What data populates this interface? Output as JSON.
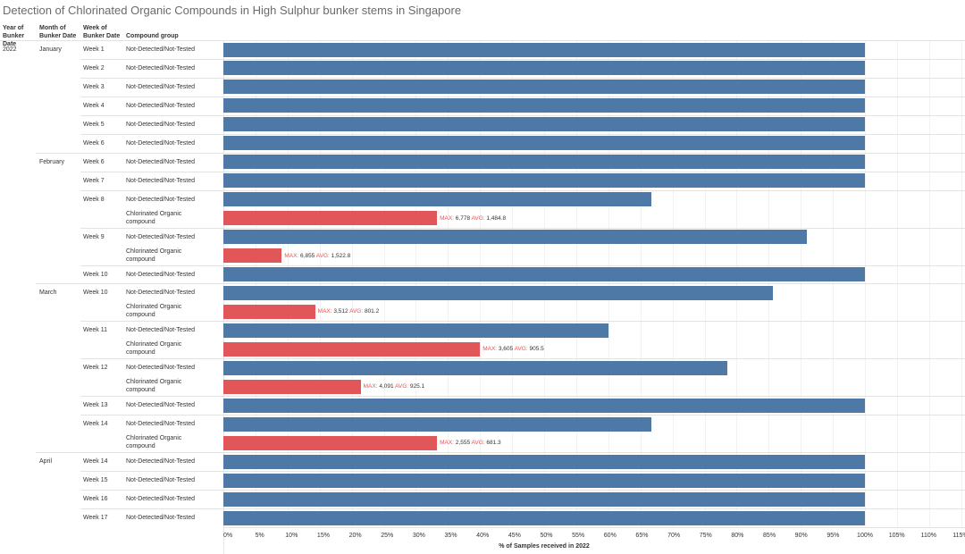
{
  "title": "Detection of Chlorinated Organic Compounds in High Sulphur bunker stems in Singapore",
  "headers": {
    "year": "Year of Bunker Date",
    "month": "Month of Bunker Date",
    "week": "Week of Bunker Date",
    "group": "Compound group"
  },
  "colors": {
    "Not-Detected/Not-Tested": "#4e79a7",
    "Chlorinated Organic compound": "#e15759"
  },
  "chart_data": {
    "type": "bar",
    "orientation": "horizontal",
    "xlabel": "% of Samples received in 2022",
    "xlim": [
      0,
      115
    ],
    "xticks": [
      "0%",
      "5%",
      "10%",
      "15%",
      "20%",
      "25%",
      "30%",
      "35%",
      "40%",
      "45%",
      "50%",
      "55%",
      "60%",
      "65%",
      "70%",
      "75%",
      "80%",
      "85%",
      "90%",
      "95%",
      "100%",
      "105%",
      "110%",
      "115%"
    ],
    "grid": true,
    "label_max": "MAX:",
    "label_avg": "AVG:",
    "year": "2022",
    "months": [
      {
        "name": "January",
        "weeks": [
          {
            "week": "Week 1",
            "rows": [
              {
                "group": "Not-Detected/Not-Tested",
                "pct": 100
              }
            ]
          },
          {
            "week": "Week 2",
            "rows": [
              {
                "group": "Not-Detected/Not-Tested",
                "pct": 100
              }
            ]
          },
          {
            "week": "Week 3",
            "rows": [
              {
                "group": "Not-Detected/Not-Tested",
                "pct": 100
              }
            ]
          },
          {
            "week": "Week 4",
            "rows": [
              {
                "group": "Not-Detected/Not-Tested",
                "pct": 100
              }
            ]
          },
          {
            "week": "Week 5",
            "rows": [
              {
                "group": "Not-Detected/Not-Tested",
                "pct": 100
              }
            ]
          },
          {
            "week": "Week 6",
            "rows": [
              {
                "group": "Not-Detected/Not-Tested",
                "pct": 100
              }
            ]
          }
        ]
      },
      {
        "name": "February",
        "weeks": [
          {
            "week": "Week 6",
            "rows": [
              {
                "group": "Not-Detected/Not-Tested",
                "pct": 100
              }
            ]
          },
          {
            "week": "Week 7",
            "rows": [
              {
                "group": "Not-Detected/Not-Tested",
                "pct": 100
              }
            ]
          },
          {
            "week": "Week 8",
            "rows": [
              {
                "group": "Not-Detected/Not-Tested",
                "pct": 66.7
              },
              {
                "group": "Chlorinated Organic compound",
                "pct": 33.3,
                "max": "6,778",
                "avg": "1,484.8"
              }
            ]
          },
          {
            "week": "Week 9",
            "rows": [
              {
                "group": "Not-Detected/Not-Tested",
                "pct": 90.9
              },
              {
                "group": "Chlorinated Organic compound",
                "pct": 9.1,
                "max": "6,855",
                "avg": "1,522.8"
              }
            ]
          },
          {
            "week": "Week 10",
            "rows": [
              {
                "group": "Not-Detected/Not-Tested",
                "pct": 100
              }
            ]
          }
        ]
      },
      {
        "name": "March",
        "weeks": [
          {
            "week": "Week 10",
            "rows": [
              {
                "group": "Not-Detected/Not-Tested",
                "pct": 85.7
              },
              {
                "group": "Chlorinated Organic compound",
                "pct": 14.3,
                "max": "3,512",
                "avg": "801.2"
              }
            ]
          },
          {
            "week": "Week 11",
            "rows": [
              {
                "group": "Not-Detected/Not-Tested",
                "pct": 60
              },
              {
                "group": "Chlorinated Organic compound",
                "pct": 40,
                "max": "3,605",
                "avg": "905.5"
              }
            ]
          },
          {
            "week": "Week 12",
            "rows": [
              {
                "group": "Not-Detected/Not-Tested",
                "pct": 78.6
              },
              {
                "group": "Chlorinated Organic compound",
                "pct": 21.4,
                "max": "4,091",
                "avg": "925.1"
              }
            ]
          },
          {
            "week": "Week 13",
            "rows": [
              {
                "group": "Not-Detected/Not-Tested",
                "pct": 100
              }
            ]
          },
          {
            "week": "Week 14",
            "rows": [
              {
                "group": "Not-Detected/Not-Tested",
                "pct": 66.7
              },
              {
                "group": "Chlorinated Organic compound",
                "pct": 33.3,
                "max": "2,555",
                "avg": "681.3"
              }
            ]
          }
        ]
      },
      {
        "name": "April",
        "weeks": [
          {
            "week": "Week 14",
            "rows": [
              {
                "group": "Not-Detected/Not-Tested",
                "pct": 100
              }
            ]
          },
          {
            "week": "Week 15",
            "rows": [
              {
                "group": "Not-Detected/Not-Tested",
                "pct": 100
              }
            ]
          },
          {
            "week": "Week 16",
            "rows": [
              {
                "group": "Not-Detected/Not-Tested",
                "pct": 100
              }
            ]
          },
          {
            "week": "Week 17",
            "rows": [
              {
                "group": "Not-Detected/Not-Tested",
                "pct": 100
              }
            ]
          }
        ]
      }
    ]
  }
}
